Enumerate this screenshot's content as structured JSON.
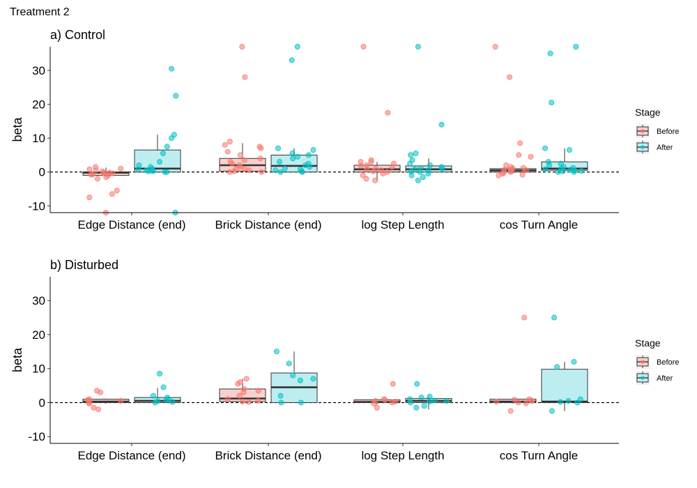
{
  "figure": {
    "title": "Treatment 2"
  },
  "legend": {
    "title": "Stage",
    "items": [
      {
        "label": "Before",
        "fill": "#f8d0cd",
        "point": "#f8766d"
      },
      {
        "label": "After",
        "fill": "#bdedf0",
        "point": "#00bfc4"
      }
    ]
  },
  "chart_data": [
    {
      "type": "box",
      "title": "a) Control",
      "ylabel": "beta",
      "xlabel": "",
      "ylim": [
        -12,
        37
      ],
      "yticks": [
        -10,
        0,
        10,
        20,
        30
      ],
      "grid": false,
      "reference_line": 0,
      "legend_position": "right",
      "categories": [
        "Edge Distance (end)",
        "Brick Distance (end)",
        "log Step Length",
        "cos Turn Angle"
      ],
      "series": [
        {
          "name": "Before",
          "boxes": [
            {
              "q1": -1,
              "median": -0.2,
              "q3": 0,
              "whisker_low": -1,
              "whisker_high": 1.3
            },
            {
              "q1": 0.2,
              "median": 2,
              "q3": 4,
              "whisker_low": 0.2,
              "whisker_high": 8.5
            },
            {
              "q1": 0,
              "median": 0.8,
              "q3": 2,
              "whisker_low": -2.5,
              "whisker_high": 3
            },
            {
              "q1": 0,
              "median": 0.5,
              "q3": 1,
              "whisker_low": -0.5,
              "whisker_high": 2
            }
          ],
          "points": [
            [
              -0.5,
              -1,
              -0.8,
              0.5,
              -0.3,
              -1.5,
              0.8,
              1,
              -0.2,
              0.2,
              -2,
              -5.5,
              -6.5,
              -7.5,
              -12,
              1.5,
              -0.4,
              -0.7
            ],
            [
              28,
              37,
              9,
              8,
              7.5,
              7,
              6,
              5,
              4,
              3,
              2,
              1,
              0.5,
              0.2,
              0,
              0,
              1.5,
              2.5,
              3.5,
              0.8
            ],
            [
              37,
              17.5,
              3.5,
              3,
              3,
              2.5,
              2,
              1.5,
              1,
              0.8,
              0.5,
              0.2,
              0,
              -0.5,
              -1,
              -2,
              -2.5,
              1.8
            ],
            [
              37,
              28,
              8.5,
              5,
              4.5,
              2,
              1.5,
              1,
              0.8,
              0.5,
              0.3,
              0,
              -0.2,
              -0.5,
              -0.8,
              -1,
              0.6,
              1.2
            ]
          ]
        },
        {
          "name": "After",
          "boxes": [
            {
              "q1": 0,
              "median": 1,
              "q3": 6.5,
              "whisker_low": 0,
              "whisker_high": 11
            },
            {
              "q1": 0,
              "median": 1.8,
              "q3": 5,
              "whisker_low": 0,
              "whisker_high": 7
            },
            {
              "q1": 0,
              "median": 0.8,
              "q3": 1.8,
              "whisker_low": -0.5,
              "whisker_high": 4
            },
            {
              "q1": 0.5,
              "median": 1,
              "q3": 3,
              "whisker_low": 0,
              "whisker_high": 7
            }
          ],
          "points": [
            [
              30.5,
              22.5,
              11,
              10,
              7.5,
              5.5,
              3,
              2,
              1.5,
              1,
              0.5,
              0.3,
              0,
              0,
              0.2,
              -12,
              0.8,
              0.4
            ],
            [
              37,
              33,
              7,
              6.5,
              5.5,
              5,
              4.5,
              4,
              3,
              2,
              1.5,
              1,
              0.5,
              0,
              0,
              0.2,
              0.8,
              2.5
            ],
            [
              37,
              14,
              5.5,
              5,
              3.5,
              2.5,
              2,
              1.5,
              1,
              0.8,
              0.5,
              0.2,
              0,
              -0.5,
              -1,
              -1.5,
              -2.5,
              1.2
            ],
            [
              37,
              35,
              20.5,
              7,
              6.5,
              3,
              2.5,
              2,
              1.5,
              1,
              0.8,
              0.5,
              0.2,
              0,
              0,
              0.3,
              1.2,
              0.6
            ]
          ]
        }
      ]
    },
    {
      "type": "box",
      "title": "b) Disturbed",
      "ylabel": "beta",
      "xlabel": "",
      "ylim": [
        -12,
        37
      ],
      "yticks": [
        -10,
        0,
        10,
        20,
        30
      ],
      "grid": false,
      "reference_line": 0,
      "legend_position": "right",
      "categories": [
        "Edge Distance (end)",
        "Brick Distance (end)",
        "log Step Length",
        "cos Turn Angle"
      ],
      "series": [
        {
          "name": "Before",
          "boxes": [
            {
              "q1": 0,
              "median": 0.3,
              "q3": 1,
              "whisker_low": -0.3,
              "whisker_high": 1.2
            },
            {
              "q1": 0.3,
              "median": 1.2,
              "q3": 4,
              "whisker_low": 0.3,
              "whisker_high": 7
            },
            {
              "q1": 0,
              "median": 0.2,
              "q3": 0.8,
              "whisker_low": -0.5,
              "whisker_high": 1
            },
            {
              "q1": 0,
              "median": 0.3,
              "q3": 1,
              "whisker_low": -0.3,
              "whisker_high": 1.5
            }
          ],
          "points": [
            [
              3.5,
              3,
              1,
              0.5,
              0,
              -0.3,
              -1.5,
              -2,
              0.8
            ],
            [
              7,
              6,
              5.5,
              4,
              3.5,
              3,
              2,
              1,
              0.5,
              0.2,
              0.3
            ],
            [
              5.5,
              1,
              0.5,
              0.3,
              0,
              -0.3,
              -1.5,
              0.8
            ],
            [
              25,
              1,
              0.8,
              0.5,
              0,
              -0.2,
              -2.5,
              0.3,
              0.6
            ]
          ]
        },
        {
          "name": "After",
          "boxes": [
            {
              "q1": 0,
              "median": 0.5,
              "q3": 1.5,
              "whisker_low": 0,
              "whisker_high": 4.3
            },
            {
              "q1": 0,
              "median": 4.5,
              "q3": 8.7,
              "whisker_low": 0,
              "whisker_high": 15
            },
            {
              "q1": 0,
              "median": 0.5,
              "q3": 1.2,
              "whisker_low": -2,
              "whisker_high": 1.8
            },
            {
              "q1": 0,
              "median": 0.3,
              "q3": 9.8,
              "whisker_low": -2.5,
              "whisker_high": 12
            }
          ],
          "points": [
            [
              8.5,
              4.5,
              2,
              1.5,
              1,
              0.5,
              0,
              0.2,
              0.8
            ],
            [
              15,
              11.5,
              8,
              7,
              6.5,
              2,
              0,
              0
            ],
            [
              5.5,
              1.8,
              1.5,
              1,
              0.5,
              0.3,
              0,
              -1,
              -1.5,
              0.6
            ],
            [
              25,
              12,
              10.5,
              1,
              0.5,
              0.2,
              0,
              -2.5
            ]
          ]
        }
      ]
    }
  ]
}
